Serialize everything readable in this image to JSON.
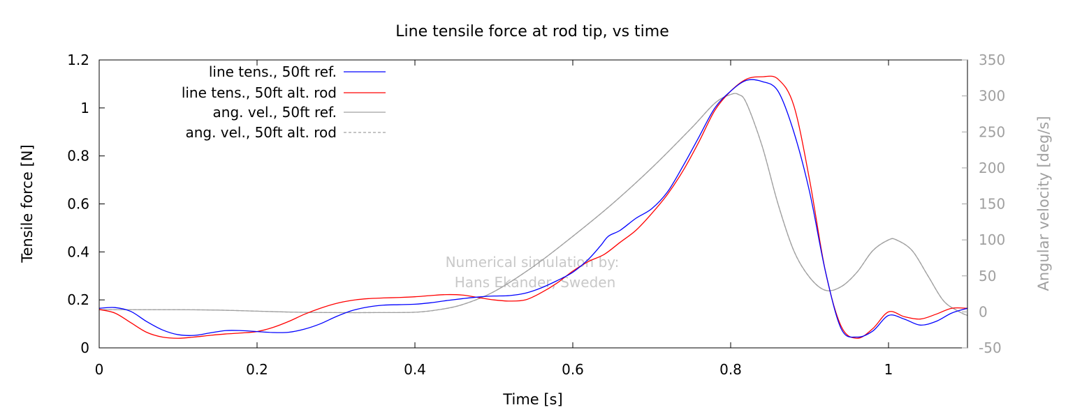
{
  "chart_data": {
    "type": "line",
    "title": "Line tensile force at rod tip, vs time",
    "xlabel": "Time [s]",
    "ylabel": "Tensile force [N]",
    "y2label": "Angular velocity [deg/s]",
    "xlim": [
      0,
      1.1
    ],
    "ylim": [
      0,
      1.2
    ],
    "y2lim": [
      -50,
      350
    ],
    "x_ticks": [
      0,
      0.2,
      0.4,
      0.6,
      0.8,
      1
    ],
    "x_tick_labels": [
      "0",
      "0.2",
      "0.4",
      "0.6",
      "0.8",
      "1"
    ],
    "y_ticks": [
      0,
      0.2,
      0.4,
      0.6,
      0.8,
      1,
      1.2
    ],
    "y_tick_labels": [
      "0",
      "0.2",
      "0.4",
      "0.6",
      "0.8",
      "1",
      "1.2"
    ],
    "y2_ticks": [
      -50,
      0,
      50,
      100,
      150,
      200,
      250,
      300,
      350
    ],
    "y2_tick_labels": [
      "-50",
      "0",
      "50",
      "100",
      "150",
      "200",
      "250",
      "300",
      "350"
    ],
    "grid": false,
    "legend_position": "top-left",
    "annotation": [
      "Numerical simulation by:",
      "Hans Ekander, Sweden"
    ],
    "colors": {
      "ref_tension": "#0000ff",
      "alt_tension": "#ff0000",
      "angvel": "#a0a0a0",
      "text_y2": "#a0a0a0",
      "watermark": "#c8c8c8"
    },
    "series": [
      {
        "name": "line tens., 50ft ref.",
        "axis": "y1",
        "style": "solid",
        "color": "#0000ff",
        "x": [
          0,
          0.02,
          0.04,
          0.06,
          0.08,
          0.1,
          0.12,
          0.14,
          0.16,
          0.18,
          0.2,
          0.22,
          0.24,
          0.26,
          0.28,
          0.3,
          0.32,
          0.34,
          0.36,
          0.38,
          0.4,
          0.42,
          0.44,
          0.46,
          0.48,
          0.5,
          0.52,
          0.54,
          0.56,
          0.58,
          0.6,
          0.62,
          0.635,
          0.645,
          0.66,
          0.68,
          0.7,
          0.72,
          0.74,
          0.76,
          0.78,
          0.8,
          0.82,
          0.84,
          0.86,
          0.88,
          0.9,
          0.92,
          0.94,
          0.96,
          0.98,
          1.0,
          1.02,
          1.04,
          1.06,
          1.08,
          1.1
        ],
        "values": [
          0.165,
          0.168,
          0.152,
          0.11,
          0.075,
          0.055,
          0.052,
          0.062,
          0.072,
          0.072,
          0.068,
          0.064,
          0.065,
          0.078,
          0.1,
          0.13,
          0.155,
          0.17,
          0.178,
          0.18,
          0.182,
          0.188,
          0.197,
          0.205,
          0.212,
          0.216,
          0.218,
          0.228,
          0.25,
          0.28,
          0.315,
          0.37,
          0.425,
          0.465,
          0.49,
          0.54,
          0.58,
          0.65,
          0.76,
          0.88,
          1.0,
          1.07,
          1.115,
          1.11,
          1.07,
          0.9,
          0.65,
          0.32,
          0.08,
          0.045,
          0.07,
          0.135,
          0.12,
          0.095,
          0.11,
          0.145,
          0.165
        ]
      },
      {
        "name": "line tens., 50ft alt. rod",
        "axis": "y1",
        "style": "solid",
        "color": "#ff0000",
        "x": [
          0,
          0.02,
          0.04,
          0.06,
          0.08,
          0.1,
          0.12,
          0.14,
          0.16,
          0.18,
          0.2,
          0.22,
          0.24,
          0.26,
          0.28,
          0.3,
          0.32,
          0.34,
          0.36,
          0.38,
          0.4,
          0.42,
          0.44,
          0.46,
          0.48,
          0.5,
          0.52,
          0.54,
          0.56,
          0.58,
          0.6,
          0.62,
          0.64,
          0.66,
          0.68,
          0.7,
          0.72,
          0.74,
          0.76,
          0.78,
          0.8,
          0.82,
          0.84,
          0.86,
          0.88,
          0.9,
          0.92,
          0.94,
          0.96,
          0.98,
          1.0,
          1.02,
          1.04,
          1.06,
          1.08,
          1.1
        ],
        "values": [
          0.16,
          0.145,
          0.105,
          0.065,
          0.045,
          0.04,
          0.045,
          0.052,
          0.058,
          0.062,
          0.068,
          0.085,
          0.11,
          0.14,
          0.165,
          0.185,
          0.198,
          0.205,
          0.208,
          0.21,
          0.213,
          0.218,
          0.222,
          0.22,
          0.21,
          0.2,
          0.195,
          0.2,
          0.23,
          0.27,
          0.32,
          0.36,
          0.39,
          0.44,
          0.49,
          0.56,
          0.64,
          0.74,
          0.86,
          0.99,
          1.07,
          1.12,
          1.13,
          1.12,
          1.01,
          0.7,
          0.32,
          0.09,
          0.04,
          0.08,
          0.15,
          0.13,
          0.12,
          0.14,
          0.165,
          0.165
        ]
      },
      {
        "name": "ang. vel., 50ft ref.",
        "axis": "y2",
        "style": "solid",
        "color": "#a0a0a0",
        "x": [
          0,
          0.05,
          0.1,
          0.15,
          0.2,
          0.25,
          0.3,
          0.35,
          0.4,
          0.43,
          0.46,
          0.5,
          0.55,
          0.6,
          0.65,
          0.7,
          0.75,
          0.78,
          0.8,
          0.81,
          0.82,
          0.84,
          0.86,
          0.88,
          0.9,
          0.92,
          0.94,
          0.96,
          0.98,
          1.0,
          1.01,
          1.03,
          1.05,
          1.07,
          1.09,
          1.1
        ],
        "values": [
          3,
          3,
          3,
          2.5,
          1,
          -0.5,
          -1,
          -1,
          -0.5,
          3,
          10,
          28,
          63,
          105,
          150,
          200,
          255,
          290,
          302,
          302,
          290,
          230,
          150,
          85,
          48,
          30,
          35,
          55,
          85,
          100,
          100,
          85,
          50,
          15,
          0,
          -5
        ]
      },
      {
        "name": "ang. vel., 50ft alt. rod",
        "axis": "y2",
        "style": "dashed",
        "color": "#a0a0a0",
        "x": [
          0,
          0.05,
          0.1,
          0.15,
          0.2,
          0.25,
          0.3,
          0.35,
          0.4,
          0.43,
          0.46,
          0.5,
          0.55,
          0.6,
          0.65,
          0.7,
          0.75,
          0.78,
          0.8,
          0.81,
          0.82,
          0.84,
          0.86,
          0.88,
          0.9,
          0.92,
          0.94,
          0.96,
          0.98,
          1.0,
          1.01,
          1.03,
          1.05,
          1.07,
          1.09,
          1.1
        ],
        "values": [
          3,
          3,
          3,
          2.5,
          1,
          -0.5,
          -1,
          -1,
          -0.5,
          3,
          10,
          28,
          63,
          105,
          150,
          200,
          255,
          290,
          302,
          302,
          290,
          230,
          150,
          85,
          48,
          30,
          35,
          55,
          85,
          100,
          100,
          85,
          50,
          15,
          0,
          -5
        ]
      }
    ]
  }
}
